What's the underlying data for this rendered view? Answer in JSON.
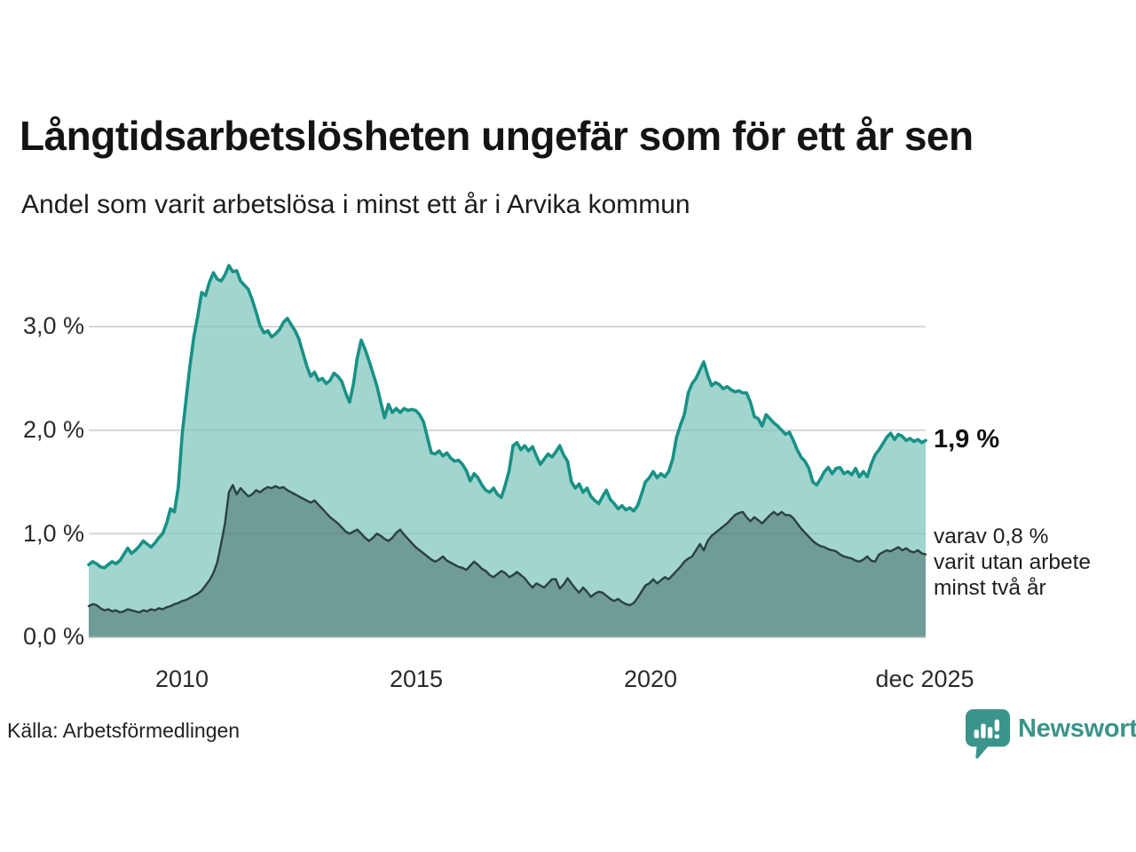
{
  "header": {
    "title": "Långtidsarbetslösheten ungefär som för ett år sen",
    "subtitle": "Andel som varit arbetslösa i minst ett år i Arvika kommun"
  },
  "chart_data": {
    "type": "area",
    "title": "Långtidsarbetslösheten ungefär som för ett år sen",
    "subtitle": "Andel som varit arbetslösa i minst ett år i Arvika kommun",
    "x_start": "2008-01",
    "x_end": "2025-12",
    "points_per_year": 12,
    "ylim": [
      0,
      3.75
    ],
    "grid": true,
    "y_ticks": [
      {
        "value": 3,
        "label": "3,0 %"
      },
      {
        "value": 2,
        "label": "2,0 %"
      },
      {
        "value": 1,
        "label": "1,0 %"
      },
      {
        "value": 0,
        "label": "0,0 %"
      }
    ],
    "x_ticks": [
      {
        "label": "2010"
      },
      {
        "label": "2015"
      },
      {
        "label": "2020"
      },
      {
        "label": "dec 2025"
      }
    ],
    "series": [
      {
        "name": "Andel som varit arbetslösa minst ett år",
        "line_color": "#189186",
        "fill_color": "#a2d5ce",
        "latest_value": 1.9,
        "values": [
          0.7,
          0.73,
          0.71,
          0.68,
          0.67,
          0.7,
          0.73,
          0.71,
          0.74,
          0.8,
          0.86,
          0.81,
          0.84,
          0.88,
          0.93,
          0.9,
          0.87,
          0.91,
          0.96,
          1.0,
          1.1,
          1.24,
          1.21,
          1.45,
          1.96,
          2.3,
          2.62,
          2.9,
          3.1,
          3.33,
          3.3,
          3.43,
          3.52,
          3.46,
          3.44,
          3.5,
          3.59,
          3.53,
          3.54,
          3.44,
          3.4,
          3.36,
          3.26,
          3.14,
          3.01,
          2.94,
          2.96,
          2.9,
          2.93,
          2.97,
          3.04,
          3.08,
          3.02,
          2.96,
          2.88,
          2.75,
          2.62,
          2.52,
          2.56,
          2.48,
          2.5,
          2.45,
          2.48,
          2.55,
          2.52,
          2.47,
          2.36,
          2.27,
          2.45,
          2.7,
          2.87,
          2.78,
          2.67,
          2.55,
          2.43,
          2.27,
          2.12,
          2.25,
          2.17,
          2.21,
          2.17,
          2.21,
          2.19,
          2.2,
          2.19,
          2.15,
          2.08,
          1.93,
          1.78,
          1.77,
          1.8,
          1.75,
          1.78,
          1.73,
          1.7,
          1.71,
          1.67,
          1.61,
          1.51,
          1.58,
          1.54,
          1.47,
          1.42,
          1.4,
          1.44,
          1.38,
          1.35,
          1.47,
          1.61,
          1.85,
          1.88,
          1.81,
          1.85,
          1.8,
          1.84,
          1.75,
          1.67,
          1.72,
          1.77,
          1.74,
          1.79,
          1.85,
          1.76,
          1.7,
          1.5,
          1.44,
          1.48,
          1.4,
          1.44,
          1.36,
          1.32,
          1.29,
          1.36,
          1.42,
          1.33,
          1.29,
          1.24,
          1.27,
          1.23,
          1.25,
          1.22,
          1.27,
          1.38,
          1.5,
          1.54,
          1.6,
          1.54,
          1.58,
          1.55,
          1.6,
          1.72,
          1.93,
          2.05,
          2.15,
          2.36,
          2.45,
          2.5,
          2.58,
          2.66,
          2.53,
          2.43,
          2.46,
          2.44,
          2.4,
          2.42,
          2.39,
          2.37,
          2.38,
          2.36,
          2.36,
          2.27,
          2.13,
          2.11,
          2.04,
          2.15,
          2.11,
          2.07,
          2.04,
          2.0,
          1.96,
          1.98,
          1.9,
          1.81,
          1.74,
          1.7,
          1.63,
          1.5,
          1.47,
          1.53,
          1.6,
          1.64,
          1.58,
          1.63,
          1.64,
          1.58,
          1.6,
          1.57,
          1.63,
          1.55,
          1.6,
          1.55,
          1.67,
          1.76,
          1.81,
          1.87,
          1.93,
          1.97,
          1.91,
          1.96,
          1.94,
          1.9,
          1.92,
          1.89,
          1.91,
          1.88,
          1.9
        ]
      },
      {
        "name": "varav utan arbete minst två år",
        "line_color": "#2c413e",
        "fill_color": "#6f9c96",
        "latest_value": 0.8,
        "values": [
          0.3,
          0.32,
          0.31,
          0.28,
          0.26,
          0.27,
          0.25,
          0.26,
          0.24,
          0.25,
          0.27,
          0.26,
          0.25,
          0.24,
          0.26,
          0.25,
          0.27,
          0.26,
          0.28,
          0.27,
          0.29,
          0.3,
          0.32,
          0.33,
          0.35,
          0.36,
          0.38,
          0.4,
          0.42,
          0.45,
          0.5,
          0.55,
          0.62,
          0.72,
          0.9,
          1.1,
          1.4,
          1.47,
          1.38,
          1.44,
          1.4,
          1.36,
          1.38,
          1.42,
          1.4,
          1.43,
          1.45,
          1.44,
          1.46,
          1.44,
          1.45,
          1.42,
          1.4,
          1.38,
          1.36,
          1.34,
          1.32,
          1.3,
          1.32,
          1.28,
          1.24,
          1.2,
          1.16,
          1.13,
          1.1,
          1.06,
          1.02,
          1.0,
          1.02,
          1.04,
          1.0,
          0.96,
          0.93,
          0.96,
          1.0,
          0.98,
          0.95,
          0.93,
          0.96,
          1.01,
          1.04,
          0.99,
          0.95,
          0.91,
          0.87,
          0.84,
          0.81,
          0.78,
          0.75,
          0.73,
          0.75,
          0.78,
          0.74,
          0.72,
          0.7,
          0.68,
          0.67,
          0.65,
          0.69,
          0.73,
          0.7,
          0.66,
          0.64,
          0.6,
          0.58,
          0.61,
          0.64,
          0.62,
          0.58,
          0.6,
          0.63,
          0.6,
          0.57,
          0.52,
          0.48,
          0.52,
          0.5,
          0.48,
          0.52,
          0.56,
          0.56,
          0.47,
          0.51,
          0.57,
          0.52,
          0.47,
          0.43,
          0.48,
          0.44,
          0.39,
          0.42,
          0.44,
          0.43,
          0.4,
          0.37,
          0.35,
          0.37,
          0.34,
          0.32,
          0.31,
          0.33,
          0.38,
          0.44,
          0.5,
          0.52,
          0.56,
          0.52,
          0.55,
          0.58,
          0.56,
          0.6,
          0.64,
          0.68,
          0.73,
          0.76,
          0.78,
          0.84,
          0.9,
          0.84,
          0.93,
          0.98,
          1.01,
          1.04,
          1.07,
          1.1,
          1.14,
          1.18,
          1.2,
          1.21,
          1.16,
          1.12,
          1.16,
          1.13,
          1.1,
          1.14,
          1.18,
          1.21,
          1.18,
          1.21,
          1.18,
          1.18,
          1.15,
          1.1,
          1.05,
          1.01,
          0.97,
          0.93,
          0.9,
          0.88,
          0.87,
          0.85,
          0.84,
          0.83,
          0.8,
          0.78,
          0.77,
          0.76,
          0.74,
          0.73,
          0.75,
          0.78,
          0.74,
          0.73,
          0.8,
          0.82,
          0.84,
          0.83,
          0.85,
          0.87,
          0.84,
          0.86,
          0.83,
          0.82,
          0.84,
          0.81,
          0.8
        ]
      }
    ],
    "annotations": {
      "latest_value_label": "1,9 %",
      "secondary_label": "varav 0,8 %\nvarit utan arbete\nminst två år"
    },
    "colors": {
      "grid": "#e4e4e4",
      "baseline": "#b5b5b5",
      "accent": "#189186",
      "brand": "#3b948b"
    }
  },
  "footer": {
    "source": "Källa: Arbetsförmedlingen",
    "brand": "Newsworthy",
    "brand_icon": "newsworthy-bars-speech-bubble"
  }
}
